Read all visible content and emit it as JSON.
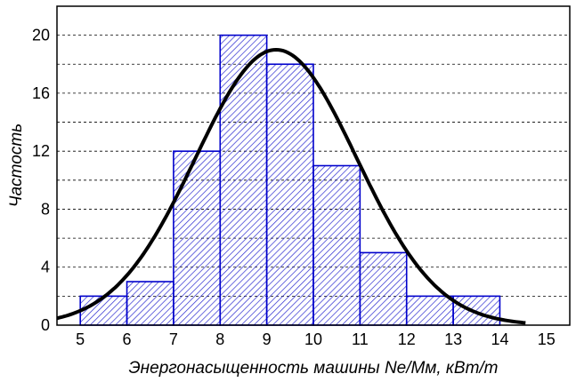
{
  "chart_data": {
    "type": "bar",
    "title": "",
    "xlabel": "Энергонасыщенность машины Ne/Mм, кВт/т",
    "ylabel": "Частость",
    "xlim": [
      4.5,
      15.5
    ],
    "ylim": [
      0,
      22
    ],
    "x_ticks": [
      "5",
      "6",
      "7",
      "8",
      "9",
      "10",
      "11",
      "12",
      "13",
      "14",
      "15"
    ],
    "y_ticks": [
      "0",
      "4",
      "8",
      "12",
      "16",
      "20"
    ],
    "grid": true,
    "bins": [
      {
        "from": 5,
        "to": 6,
        "value": 2
      },
      {
        "from": 6,
        "to": 7,
        "value": 3
      },
      {
        "from": 7,
        "to": 8,
        "value": 12
      },
      {
        "from": 8,
        "to": 9,
        "value": 20
      },
      {
        "from": 9,
        "to": 10,
        "value": 18
      },
      {
        "from": 10,
        "to": 11,
        "value": 11
      },
      {
        "from": 11,
        "to": 12,
        "value": 5
      },
      {
        "from": 12,
        "to": 13,
        "value": 2
      },
      {
        "from": 13,
        "to": 14,
        "value": 2
      }
    ],
    "curve": {
      "type": "normal",
      "mean": 9.2,
      "sd": 1.73,
      "peak": 19
    },
    "colors": {
      "bar_stroke": "#0000cc",
      "hatch": "#2a2ad0",
      "curve": "#000000",
      "grid": "#000000"
    }
  }
}
